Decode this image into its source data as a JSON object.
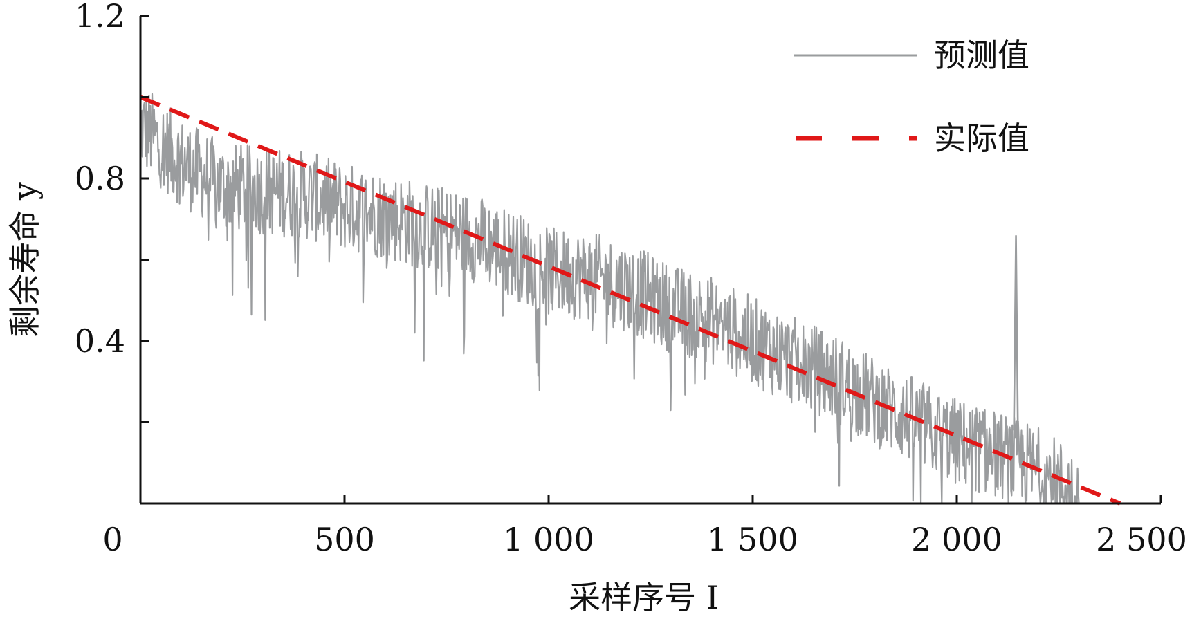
{
  "chart_data": {
    "type": "line",
    "xlabel": "采样序号 I",
    "ylabel": "剩余寿命 y",
    "xlim": [
      0,
      2500
    ],
    "ylim": [
      0,
      1.2
    ],
    "x_ticks": [
      0,
      500,
      1000,
      1500,
      2000,
      2500
    ],
    "x_tick_labels": [
      "0",
      "500",
      "1 000",
      "1 500",
      "2 000",
      "2 500"
    ],
    "y_ticks": [
      0.2,
      0.4,
      0.6,
      0.8,
      1.0,
      1.2
    ],
    "y_tick_labels": [
      "",
      "0.4",
      "",
      "0.8",
      "",
      "1.2"
    ],
    "grid": false,
    "legend_position": "top-right",
    "series": [
      {
        "name": "预测值",
        "style": "solid",
        "color": "#9a9c9e",
        "x_range": [
          0,
          2300
        ],
        "values_note": "",
        "x": [
          0,
          100,
          200,
          300,
          400,
          500,
          600,
          700,
          800,
          900,
          1000,
          1100,
          1200,
          1300,
          1400,
          1500,
          1600,
          1700,
          1800,
          1900,
          2000,
          2100,
          2200,
          2300
        ],
        "values": [
          0.93,
          0.84,
          0.78,
          0.77,
          0.76,
          0.73,
          0.71,
          0.68,
          0.66,
          0.62,
          0.57,
          0.56,
          0.53,
          0.48,
          0.45,
          0.4,
          0.35,
          0.31,
          0.25,
          0.2,
          0.15,
          0.12,
          0.08,
          0.02
        ]
      },
      {
        "name": "实际值",
        "style": "dashed",
        "color": "#e01818",
        "x": [
          0,
          2400
        ],
        "values": [
          1.0,
          0.0
        ]
      }
    ]
  }
}
